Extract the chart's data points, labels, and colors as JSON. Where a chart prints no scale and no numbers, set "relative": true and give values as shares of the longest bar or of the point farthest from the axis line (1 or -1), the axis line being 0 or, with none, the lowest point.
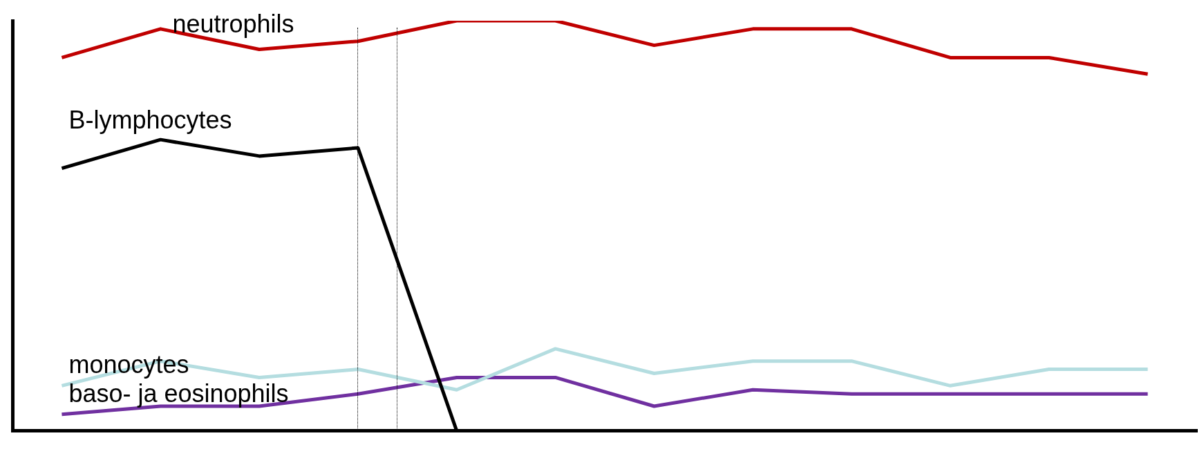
{
  "chart_data": {
    "type": "line",
    "relative": true,
    "categories": [
      null,
      null,
      null,
      null,
      null,
      null,
      null,
      null,
      null,
      null,
      null,
      null
    ],
    "series": [
      {
        "name": "neutrophils",
        "color": "#c00000",
        "values": [
          0.91,
          0.98,
          0.93,
          0.95,
          1,
          1,
          0.94,
          0.98,
          0.98,
          0.91,
          0.91,
          0.87
        ]
      },
      {
        "name": "B-lymphocytes",
        "color": "#000000",
        "values": [
          0.64,
          0.71,
          0.67,
          0.69,
          0,
          null,
          null,
          null,
          null,
          null,
          null,
          null
        ]
      },
      {
        "name": "monocytes",
        "color": "#b4dde0",
        "values": [
          0.11,
          0.17,
          0.13,
          0.15,
          0.1,
          0.2,
          0.14,
          0.17,
          0.17,
          0.11,
          0.15,
          0.15
        ]
      },
      {
        "name": "baso- ja eosinophils",
        "color": "#7030a0",
        "values": [
          0.04,
          0.06,
          0.06,
          0.09,
          0.13,
          0.13,
          0.06,
          0.1,
          0.09,
          0.09,
          0.09,
          0.09
        ]
      }
    ],
    "grid": false,
    "legend": false,
    "marker": "none",
    "line_style": "solid"
  }
}
